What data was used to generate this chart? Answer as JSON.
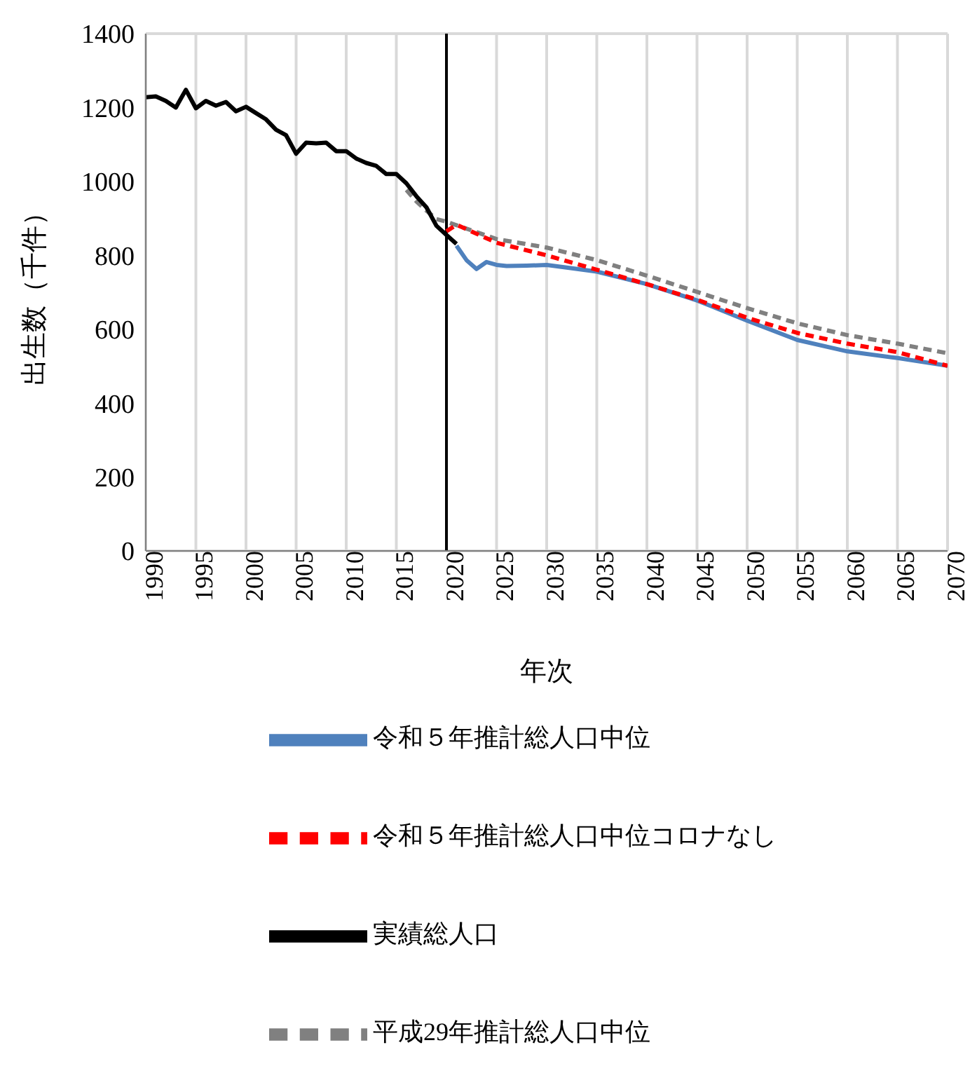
{
  "chart_data": {
    "type": "line",
    "xlabel": "年次",
    "ylabel": "出生数（千件）",
    "xlim": [
      1990,
      2070
    ],
    "xticks": [
      1990,
      1995,
      2000,
      2005,
      2010,
      2015,
      2020,
      2025,
      2030,
      2035,
      2040,
      2045,
      2050,
      2055,
      2060,
      2065,
      2070
    ],
    "ylim": [
      0,
      1400
    ],
    "yticks": [
      0,
      200,
      400,
      600,
      800,
      1000,
      1200,
      1400
    ],
    "grid": true,
    "legend": "bottom",
    "marker": "none",
    "series": [
      {
        "name": "平成29年推計総人口中位",
        "color": "#808080",
        "line_style": "dashed",
        "x": [
          2016,
          2017,
          2018,
          2019,
          2020,
          2025,
          2030,
          2035,
          2040,
          2045,
          2050,
          2055,
          2060,
          2065,
          2070
        ],
        "values": [
          977,
          946,
          921,
          898,
          891,
          844,
          821,
          787,
          745,
          701,
          657,
          616,
          584,
          561,
          535
        ]
      },
      {
        "name": "令和５年推計総人口中位",
        "color": "#4f81bd",
        "line_style": "solid",
        "x": [
          2021,
          2022,
          2023,
          2024,
          2025,
          2026,
          2028,
          2030,
          2032,
          2035,
          2040,
          2045,
          2050,
          2055,
          2060,
          2065,
          2070
        ],
        "values": [
          826,
          787,
          763,
          782,
          774,
          771,
          772,
          774,
          767,
          756,
          722,
          678,
          623,
          571,
          540,
          522,
          501
        ]
      },
      {
        "name": "令和５年推計総人口中位コロナなし",
        "color": "#ff0000",
        "line_style": "dashed",
        "x": [
          2020,
          2021,
          2025,
          2030,
          2035,
          2040,
          2045,
          2050,
          2055,
          2060,
          2065,
          2070
        ],
        "values": [
          865,
          883,
          834,
          800,
          761,
          722,
          680,
          631,
          590,
          561,
          538,
          501
        ]
      },
      {
        "name": "実績総人口",
        "color": "#000000",
        "line_style": "solid",
        "x": [
          1990,
          1991,
          1992,
          1993,
          1994,
          1995,
          1996,
          1997,
          1998,
          1999,
          2000,
          2001,
          2002,
          2003,
          2004,
          2005,
          2006,
          2007,
          2008,
          2009,
          2010,
          2011,
          2012,
          2013,
          2014,
          2015,
          2016,
          2017,
          2018,
          2019,
          2020,
          2021
        ],
        "values": [
          1228,
          1230,
          1218,
          1200,
          1248,
          1198,
          1218,
          1205,
          1215,
          1190,
          1202,
          1185,
          1168,
          1140,
          1125,
          1075,
          1105,
          1103,
          1105,
          1082,
          1082,
          1062,
          1050,
          1042,
          1020,
          1020,
          995,
          960,
          930,
          880,
          855,
          831
        ]
      }
    ],
    "ref_lines": [
      {
        "axis": "x",
        "value": 2020,
        "color": "#000000",
        "line_style": "solid"
      }
    ]
  }
}
